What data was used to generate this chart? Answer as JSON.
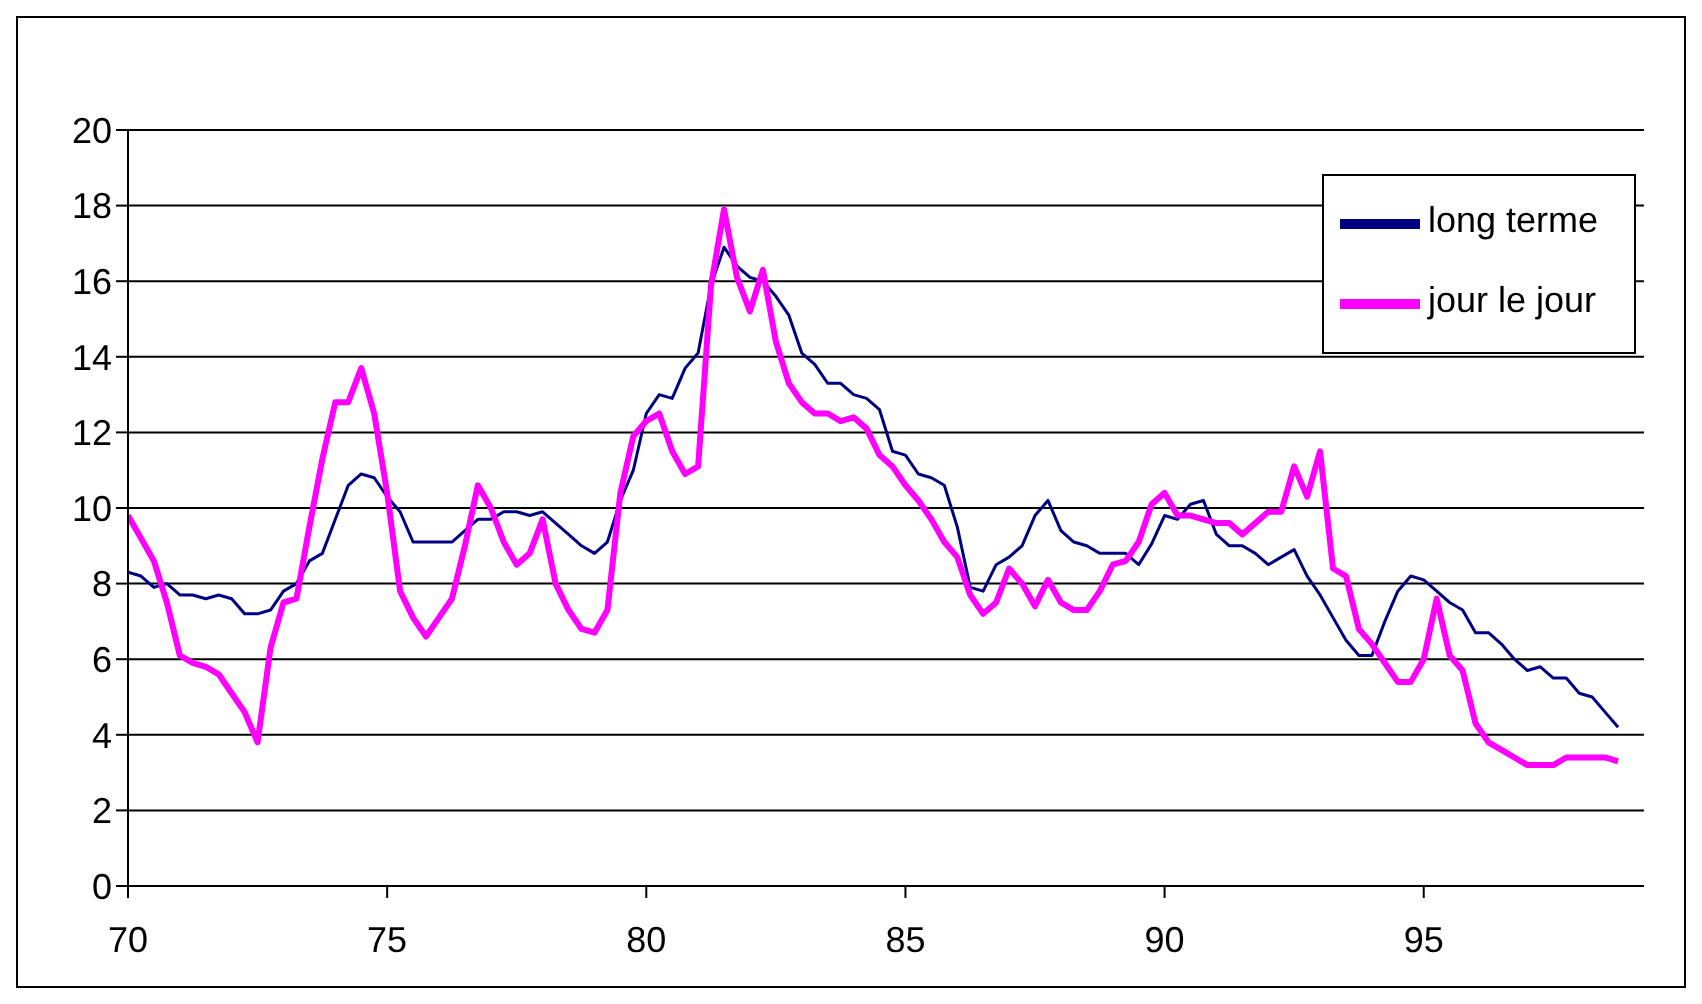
{
  "chart_data": {
    "type": "line",
    "xlim": [
      70,
      99.25
    ],
    "xticks": [
      70,
      75,
      80,
      85,
      90,
      95
    ],
    "ylim": [
      0,
      20
    ],
    "yticks": [
      0,
      2,
      4,
      6,
      8,
      10,
      12,
      14,
      16,
      18,
      20
    ],
    "grid": "y",
    "legend": "top right",
    "marker": "none",
    "line_style": "solid",
    "series": [
      {
        "name": "long terme",
        "color": "#000080",
        "x": [
          70,
          70.25,
          70.5,
          70.75,
          71,
          71.25,
          71.5,
          71.75,
          72,
          72.25,
          72.5,
          72.75,
          73,
          73.25,
          73.5,
          73.75,
          74,
          74.25,
          74.5,
          74.75,
          75,
          75.25,
          75.5,
          76,
          76.25,
          76.5,
          76.75,
          77,
          77.25,
          77.5,
          77.75,
          78,
          78.25,
          78.5,
          78.75,
          79,
          79.25,
          79.5,
          79.75,
          80,
          80.25,
          80.5,
          80.75,
          81,
          81.25,
          81.5,
          81.75,
          82,
          82.25,
          82.5,
          82.75,
          83,
          83.25,
          83.5,
          83.75,
          84,
          84.25,
          84.5,
          84.75,
          85,
          85.25,
          85.5,
          85.75,
          86,
          86.25,
          86.5,
          86.75,
          87,
          87.25,
          87.5,
          87.75,
          88,
          88.25,
          88.5,
          88.75,
          89,
          89.25,
          89.5,
          89.75,
          90,
          90.25,
          90.5,
          90.75,
          91,
          91.25,
          91.5,
          91.75,
          92,
          92.25,
          92.5,
          92.75,
          93,
          93.25,
          93.5,
          93.75,
          94,
          94.25,
          94.5,
          94.75,
          95,
          95.25,
          95.5,
          95.75,
          96,
          96.25,
          96.5,
          96.75,
          97,
          97.25,
          97.5,
          97.75,
          98,
          98.25,
          98.5,
          98.75
        ],
        "values": [
          8.3,
          8.2,
          7.9,
          8.0,
          7.7,
          7.7,
          7.6,
          7.7,
          7.6,
          7.2,
          7.2,
          7.3,
          7.8,
          8.0,
          8.6,
          8.8,
          9.7,
          10.6,
          10.9,
          10.8,
          10.3,
          9.9,
          9.1,
          9.1,
          9.1,
          9.4,
          9.7,
          9.7,
          9.9,
          9.9,
          9.8,
          9.9,
          9.6,
          9.3,
          9.0,
          8.8,
          9.1,
          10.2,
          11.0,
          12.5,
          13.0,
          12.9,
          13.7,
          14.1,
          15.9,
          16.9,
          16.4,
          16.1,
          16.0,
          15.6,
          15.1,
          14.1,
          13.8,
          13.3,
          13.3,
          13.0,
          12.9,
          12.6,
          11.5,
          11.4,
          10.9,
          10.8,
          10.6,
          9.5,
          7.9,
          7.8,
          8.5,
          8.7,
          9.0,
          9.8,
          10.2,
          9.4,
          9.1,
          9.0,
          8.8,
          8.8,
          8.8,
          8.5,
          9.05,
          9.8,
          9.7,
          10.1,
          10.2,
          9.3,
          9.0,
          9.0,
          8.8,
          8.5,
          8.7,
          8.9,
          8.2,
          7.7,
          7.1,
          6.5,
          6.1,
          6.1,
          7.0,
          7.8,
          8.2,
          8.1,
          7.8,
          7.5,
          7.3,
          6.7,
          6.7,
          6.4,
          6.0,
          5.7,
          5.8,
          5.5,
          5.5,
          5.1,
          5.0,
          4.6,
          4.2
        ]
      },
      {
        "name": "jour le jour",
        "color": "#ff00ff",
        "x": [
          70,
          70.5,
          70.75,
          71,
          71.25,
          71.5,
          71.75,
          72,
          72.25,
          72.5,
          72.75,
          73,
          73.25,
          73.5,
          73.75,
          74,
          74.25,
          74.5,
          74.75,
          75,
          75.25,
          75.5,
          75.75,
          76,
          76.25,
          76.5,
          76.75,
          77,
          77.25,
          77.5,
          77.75,
          78,
          78.25,
          78.5,
          78.75,
          79,
          79.25,
          79.5,
          79.75,
          80,
          80.25,
          80.5,
          80.75,
          81,
          81.25,
          81.5,
          81.75,
          82,
          82.25,
          82.5,
          82.75,
          83,
          83.25,
          83.5,
          83.75,
          84,
          84.25,
          84.5,
          84.75,
          85,
          85.25,
          85.5,
          85.75,
          86,
          86.25,
          86.5,
          86.75,
          87,
          87.25,
          87.5,
          87.75,
          88,
          88.25,
          88.5,
          88.75,
          89,
          89.25,
          89.5,
          89.75,
          90,
          90.25,
          90.5,
          90.75,
          91,
          91.25,
          91.5,
          91.75,
          92,
          92.25,
          92.5,
          92.75,
          93,
          93.25,
          93.5,
          93.75,
          94,
          94.25,
          94.5,
          94.75,
          95,
          95.25,
          95.5,
          95.75,
          96,
          96.25,
          96.5,
          96.75,
          97,
          97.5,
          97.75,
          98.5,
          98.75
        ],
        "values": [
          9.8,
          8.6,
          7.5,
          6.1,
          5.9,
          5.8,
          5.6,
          5.1,
          4.6,
          3.8,
          6.3,
          7.5,
          7.6,
          9.5,
          11.3,
          12.8,
          12.8,
          13.7,
          12.5,
          10.4,
          7.8,
          7.1,
          6.6,
          7.1,
          7.6,
          9.0,
          10.6,
          10.0,
          9.1,
          8.5,
          8.8,
          9.7,
          8.0,
          7.3,
          6.8,
          6.7,
          7.3,
          10.4,
          11.9,
          12.3,
          12.5,
          11.5,
          10.9,
          11.1,
          15.9,
          17.9,
          16.1,
          15.2,
          16.3,
          14.4,
          13.3,
          12.8,
          12.5,
          12.5,
          12.3,
          12.4,
          12.1,
          11.4,
          11.1,
          10.6,
          10.2,
          9.7,
          9.1,
          8.7,
          7.7,
          7.2,
          7.5,
          8.4,
          8.0,
          7.4,
          8.1,
          7.5,
          7.3,
          7.3,
          7.8,
          8.5,
          8.6,
          9.1,
          10.1,
          10.4,
          9.8,
          9.8,
          9.7,
          9.6,
          9.6,
          9.3,
          9.6,
          9.9,
          9.9,
          11.1,
          10.3,
          11.5,
          8.4,
          8.2,
          6.8,
          6.4,
          5.9,
          5.4,
          5.4,
          6.0,
          7.6,
          6.1,
          5.7,
          4.3,
          3.8,
          3.6,
          3.4,
          3.2,
          3.2,
          3.4,
          3.4,
          3.3
        ]
      }
    ]
  }
}
